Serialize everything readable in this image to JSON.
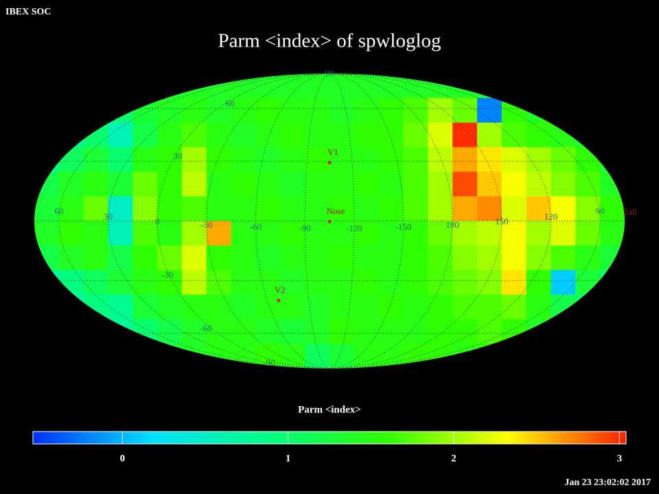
{
  "header": {
    "corner": "IBEX SOC",
    "title": "Parm  <index> of spwloglog"
  },
  "map": {
    "grid": [
      [
        1.4,
        1.4,
        1.4,
        1.4,
        1.4,
        1.4,
        1.4,
        1.4,
        1.4,
        1.4,
        1.4,
        1.4,
        1.4,
        1.4,
        1.4,
        1.4,
        1.4,
        1.4,
        1.4,
        1.4,
        1.4,
        1.4,
        1.4,
        1.4
      ],
      [
        0.8,
        0.8,
        0.9,
        1.0,
        1.3,
        1.4,
        1.5,
        1.4,
        1.5,
        1.6,
        1.5,
        1.5,
        1.4,
        1.5,
        1.6,
        1.7,
        2.0,
        1.8,
        -0.2,
        1.6,
        1.4,
        1.2,
        1.0,
        0.9
      ],
      [
        0.7,
        0.8,
        1.0,
        0.6,
        1.2,
        1.5,
        1.7,
        1.5,
        1.4,
        1.5,
        1.6,
        1.5,
        1.5,
        1.6,
        1.6,
        1.8,
        2.2,
        3.0,
        2.0,
        1.7,
        1.6,
        1.5,
        1.3,
        1.0
      ],
      [
        0.9,
        1.1,
        1.3,
        1.0,
        1.5,
        1.6,
        2.0,
        1.6,
        1.5,
        1.4,
        1.5,
        1.6,
        1.5,
        1.5,
        1.6,
        1.7,
        2.1,
        2.6,
        2.4,
        2.2,
        2.0,
        1.8,
        1.6,
        1.3
      ],
      [
        1.2,
        1.4,
        1.5,
        1.3,
        1.8,
        1.6,
        2.1,
        1.5,
        1.6,
        1.5,
        1.4,
        1.5,
        1.5,
        1.6,
        1.5,
        1.7,
        2.0,
        2.9,
        2.5,
        2.3,
        2.1,
        1.9,
        1.7,
        1.4
      ],
      [
        1.3,
        1.5,
        1.8,
        0.5,
        1.9,
        1.6,
        1.7,
        1.5,
        1.5,
        1.6,
        1.5,
        1.5,
        1.6,
        1.5,
        1.6,
        1.7,
        2.0,
        2.6,
        2.7,
        2.2,
        2.5,
        2.3,
        1.9,
        1.6
      ],
      [
        1.4,
        1.6,
        1.5,
        0.6,
        1.7,
        1.5,
        2.0,
        2.6,
        1.5,
        1.5,
        1.6,
        1.5,
        1.5,
        1.6,
        1.5,
        1.6,
        1.8,
        2.0,
        2.1,
        2.3,
        2.0,
        2.2,
        1.8,
        1.5
      ],
      [
        1.2,
        1.4,
        1.5,
        1.2,
        1.6,
        1.8,
        2.2,
        1.6,
        1.5,
        1.4,
        1.5,
        1.5,
        1.6,
        1.5,
        1.5,
        1.6,
        1.7,
        1.9,
        2.0,
        2.3,
        1.9,
        1.7,
        1.5,
        1.3
      ],
      [
        0.7,
        0.9,
        1.1,
        1.3,
        1.5,
        1.6,
        2.1,
        1.7,
        1.5,
        1.5,
        1.4,
        1.5,
        1.5,
        1.6,
        1.5,
        1.6,
        1.7,
        1.8,
        1.9,
        2.4,
        1.6,
        0.1,
        1.3,
        1.0
      ],
      [
        0.5,
        0.7,
        0.9,
        0.8,
        1.3,
        1.4,
        1.5,
        1.5,
        1.4,
        1.5,
        1.5,
        1.4,
        1.5,
        1.5,
        1.6,
        1.5,
        1.6,
        1.7,
        1.7,
        1.8,
        1.5,
        1.2,
        1.0,
        0.8
      ],
      [
        0.8,
        0.9,
        0.6,
        0.8,
        1.0,
        1.2,
        1.4,
        1.5,
        1.5,
        1.4,
        1.3,
        1.4,
        1.6,
        1.5,
        1.5,
        1.5,
        1.6,
        1.6,
        1.7,
        1.6,
        1.4,
        1.2,
        1.0,
        0.9
      ],
      [
        1.0,
        1.0,
        1.0,
        1.1,
        1.2,
        1.3,
        1.4,
        1.5,
        1.5,
        1.6,
        1.5,
        1.1,
        1.3,
        1.5,
        1.5,
        1.6,
        1.6,
        1.5,
        1.5,
        1.5,
        1.4,
        1.2,
        1.1,
        1.0
      ]
    ],
    "lon_labels": [
      60,
      30,
      0,
      -30,
      -60,
      -90,
      -120,
      -150,
      180,
      150,
      120,
      90
    ],
    "lat_labels": [
      90,
      60,
      30,
      -30,
      -60,
      -90
    ],
    "markers": [
      {
        "label": "V1"
      },
      {
        "label": "Nose"
      },
      {
        "label": "V2"
      },
      {
        "label": "Tail"
      }
    ]
  },
  "colorbar": {
    "title": "Parm  <index>",
    "lim": [
      -0.54,
      3.04
    ],
    "ticks": [
      0,
      1,
      2,
      3
    ],
    "colors": [
      "#0030ff",
      "#00e0ff",
      "#00ff80",
      "#30ff00",
      "#ffff00",
      "#ff2000"
    ]
  },
  "footer": {
    "timestamp": "Jan 23 23:02:02 2017"
  }
}
